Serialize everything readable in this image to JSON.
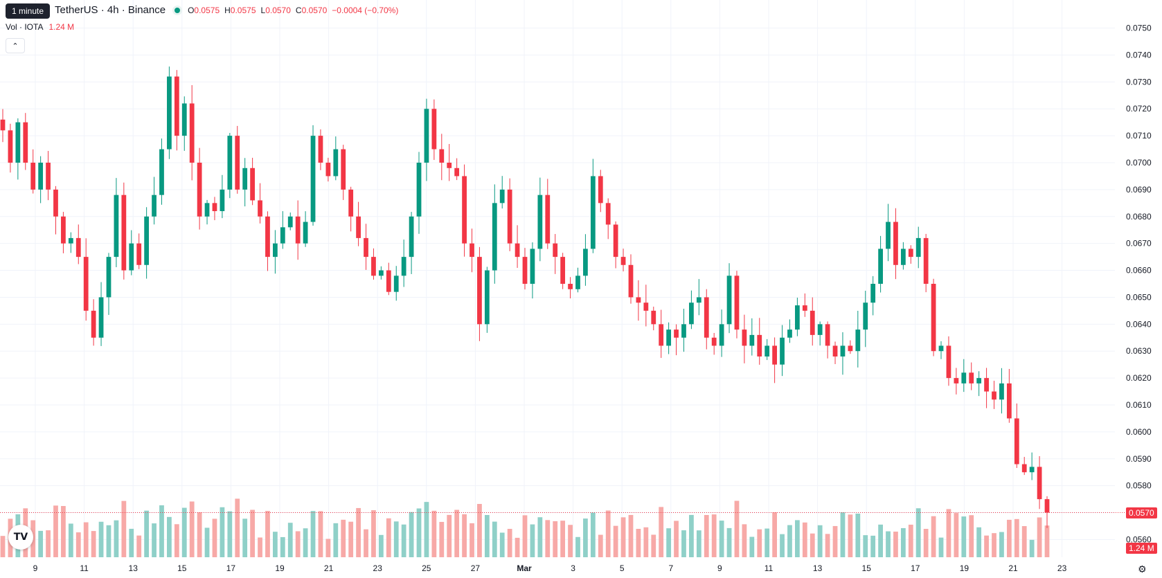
{
  "legend": {
    "tooltip": "1 minute",
    "symbol_title": "TetherUS · 4h · Binance",
    "status_color": "#089981",
    "ohlc": [
      {
        "key": "O",
        "value": "0.0575"
      },
      {
        "key": "H",
        "value": "0.0575"
      },
      {
        "key": "L",
        "value": "0.0570"
      },
      {
        "key": "C",
        "value": "0.0570"
      }
    ],
    "change": "−0.0004 (−0.70%)",
    "vol_label": "Vol · IOTA",
    "vol_value": "1.24 M",
    "collapse_icon": "chevron-up-icon"
  },
  "price_tags": {
    "last_price": "0.0570",
    "last_volume": "1.24 M"
  },
  "colors": {
    "up": "#089981",
    "down": "#f23645",
    "volume_up": "#8fd0c8",
    "volume_down": "#f7a9a7",
    "grid": "#f0f3fa",
    "text": "#131722"
  },
  "chart_data": {
    "type": "candlestick",
    "interval": "4h",
    "y_ticks": [
      "0.0750",
      "0.0740",
      "0.0730",
      "0.0720",
      "0.0710",
      "0.0700",
      "0.0690",
      "0.0680",
      "0.0670",
      "0.0660",
      "0.0650",
      "0.0640",
      "0.0630",
      "0.0620",
      "0.0610",
      "0.0600",
      "0.0590",
      "0.0580",
      "0.0570",
      "0.0560"
    ],
    "ylim": [
      0.0556,
      0.0754
    ],
    "x_ticks": [
      "9",
      "11",
      "13",
      "15",
      "17",
      "19",
      "21",
      "23",
      "25",
      "27",
      "Mar",
      "3",
      "5",
      "7",
      "9",
      "11",
      "13",
      "15",
      "17",
      "19",
      "21",
      "23"
    ],
    "close_path": [
      0.0712,
      0.07,
      0.0715,
      0.07,
      0.069,
      0.07,
      0.069,
      0.068,
      0.067,
      0.0672,
      0.0665,
      0.0645,
      0.0635,
      0.065,
      0.0665,
      0.0688,
      0.066,
      0.067,
      0.0662,
      0.068,
      0.0688,
      0.0705,
      0.0732,
      0.071,
      0.0722,
      0.07,
      0.068,
      0.0685,
      0.0682,
      0.069,
      0.071,
      0.069,
      0.0698,
      0.0686,
      0.068,
      0.0665,
      0.067,
      0.0676,
      0.068,
      0.067,
      0.0678,
      0.071,
      0.07,
      0.0695,
      0.0705,
      0.069,
      0.068,
      0.0672,
      0.0665,
      0.0658,
      0.066,
      0.0652,
      0.0658,
      0.0665,
      0.068,
      0.07,
      0.072,
      0.0705,
      0.07,
      0.0698,
      0.0695,
      0.067,
      0.0665,
      0.064,
      0.066,
      0.0685,
      0.069,
      0.067,
      0.0665,
      0.0655,
      0.0668,
      0.0688,
      0.067,
      0.0665,
      0.0655,
      0.0653,
      0.0658,
      0.0668,
      0.0695,
      0.0685,
      0.0677,
      0.0665,
      0.0662,
      0.065,
      0.0648,
      0.0645,
      0.064,
      0.0632,
      0.0638,
      0.0635,
      0.064,
      0.0648,
      0.065,
      0.0635,
      0.0632,
      0.064,
      0.0658,
      0.0638,
      0.0632,
      0.0636,
      0.0628,
      0.0632,
      0.0625,
      0.0635,
      0.0638,
      0.0647,
      0.0645,
      0.0636,
      0.064,
      0.0632,
      0.0628,
      0.0632,
      0.063,
      0.0638,
      0.0648,
      0.0655,
      0.0668,
      0.0678,
      0.0662,
      0.0668,
      0.0665,
      0.0672,
      0.0655,
      0.063,
      0.0632,
      0.062,
      0.0618,
      0.0622,
      0.0618,
      0.062,
      0.0615,
      0.0612,
      0.0618,
      0.0605,
      0.0588,
      0.0585,
      0.0587,
      0.0575,
      0.057
    ]
  }
}
